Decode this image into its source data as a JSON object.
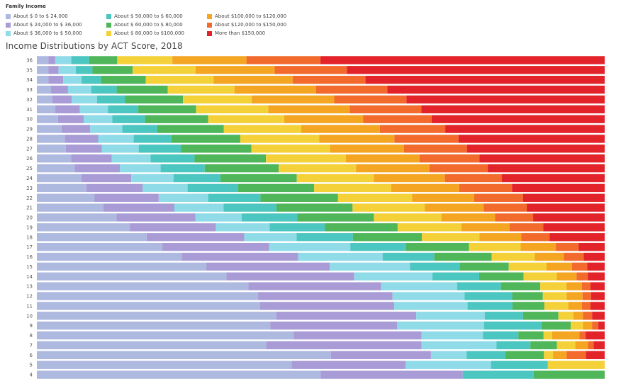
{
  "legend": {
    "title": "Family Income",
    "items": [
      {
        "label": "About $ 0 to $ 24,000",
        "color": "#aeb9e0"
      },
      {
        "label": "About $ 24,000 to $ 36,000",
        "color": "#a99cd6"
      },
      {
        "label": "About $ 36,000 to $ 50,000",
        "color": "#8fdbe8"
      },
      {
        "label": "About $ 50,000 to $ 60,000",
        "color": "#4cc6c0"
      },
      {
        "label": "About $ 60,000 to $ 80,000",
        "color": "#4fb65a"
      },
      {
        "label": "About $ 80,000 to $100,000",
        "color": "#f5d139"
      },
      {
        "label": "About $100,000 to $120,000",
        "color": "#f4a623"
      },
      {
        "label": "About $120,000 to $150,000",
        "color": "#f26a2c"
      },
      {
        "label": "More than $150,000",
        "color": "#e3232a"
      }
    ]
  },
  "chart_data": {
    "type": "bar",
    "orientation": "horizontal",
    "stacked": true,
    "normalized": true,
    "title": "Income Distributions by ACT Score, 2018",
    "xlabel": "",
    "ylabel": "",
    "categories": [
      "36",
      "35",
      "34",
      "33",
      "32",
      "31",
      "30",
      "29",
      "28",
      "27",
      "26",
      "25",
      "24",
      "23",
      "22",
      "21",
      "20",
      "19",
      "18",
      "17",
      "16",
      "15",
      "14",
      "13",
      "12",
      "11",
      "10",
      "9",
      "8",
      "7",
      "6",
      "5",
      "4"
    ],
    "series": [
      {
        "name": "About $ 0 to $ 24,000",
        "values": [
          2.0,
          2.0,
          2.0,
          2.5,
          2.7,
          3.2,
          3.7,
          4.3,
          4.9,
          5.1,
          6.0,
          6.6,
          7.7,
          8.6,
          10.0,
          11.6,
          13.8,
          16.2,
          19.1,
          22.1,
          25.5,
          30.0,
          33.7,
          37.1,
          39.0,
          39.2,
          41.9,
          40.6,
          45.8,
          39.8,
          51.8,
          44.8,
          50.0
        ]
      },
      {
        "name": "About $ 24,000 to $ 36,000",
        "values": [
          1.2,
          1.8,
          2.6,
          3.0,
          3.4,
          4.3,
          4.5,
          5.0,
          5.8,
          6.3,
          7.1,
          7.9,
          8.6,
          9.8,
          11.2,
          12.4,
          13.7,
          15.0,
          17.0,
          18.8,
          20.5,
          21.9,
          22.7,
          23.3,
          23.7,
          23.6,
          24.5,
          22.1,
          22.8,
          27.0,
          17.6,
          20.1,
          25.0
        ]
      },
      {
        "name": "About $ 36,000 to $ 50,000",
        "values": [
          2.8,
          3.0,
          3.2,
          4.1,
          4.4,
          4.9,
          5.0,
          5.6,
          6.2,
          6.5,
          6.8,
          7.1,
          7.3,
          7.8,
          8.6,
          8.6,
          8.0,
          9.4,
          9.1,
          14.3,
          14.9,
          14.2,
          13.9,
          13.3,
          12.7,
          12.9,
          12.0,
          15.1,
          11.0,
          13.0,
          6.3,
          15.0,
          0.0
        ]
      },
      {
        "name": "About $ 50,000 to $ 60,000",
        "values": [
          3.1,
          2.9,
          3.4,
          4.5,
          4.9,
          5.3,
          5.7,
          6.1,
          6.6,
          7.4,
          7.7,
          7.7,
          8.1,
          8.8,
          9.1,
          9.2,
          9.6,
          9.6,
          9.8,
          9.8,
          9.1,
          8.8,
          8.3,
          7.7,
          8.4,
          7.9,
          6.7,
          10.0,
          6.3,
          5.9,
          6.8,
          10.0,
          12.5
        ]
      },
      {
        "name": "About $ 60,000 to $ 80,000",
        "values": [
          4.9,
          7.0,
          7.8,
          9.0,
          10.1,
          10.1,
          11.1,
          11.6,
          12.0,
          12.4,
          12.5,
          12.9,
          13.2,
          13.2,
          13.5,
          13.3,
          13.3,
          12.7,
          12.0,
          11.1,
          10.1,
          8.7,
          7.9,
          6.9,
          5.4,
          5.6,
          6.2,
          5.1,
          4.5,
          4.6,
          6.8,
          0.0,
          12.5
        ]
      },
      {
        "name": "About $ 80,000 to $100,000",
        "values": [
          9.6,
          11.0,
          11.8,
          11.8,
          12.0,
          12.6,
          13.3,
          13.5,
          13.8,
          13.8,
          14.0,
          13.5,
          13.3,
          13.4,
          12.9,
          12.6,
          11.7,
          11.1,
          10.0,
          9.1,
          7.6,
          6.7,
          5.9,
          4.6,
          4.2,
          4.2,
          2.6,
          2.1,
          1.5,
          3.2,
          1.6,
          10.0,
          0.0
        ]
      },
      {
        "name": "About $100,000 to $120,000",
        "values": [
          12.9,
          13.8,
          13.8,
          14.4,
          14.4,
          14.2,
          13.8,
          13.7,
          13.1,
          13.0,
          12.9,
          12.8,
          12.3,
          11.8,
          10.8,
          10.3,
          9.3,
          8.4,
          7.3,
          6.2,
          5.1,
          4.5,
          3.5,
          2.7,
          2.8,
          2.4,
          1.7,
          1.6,
          4.9,
          2.2,
          2.4,
          0.0,
          0.0
        ]
      },
      {
        "name": "About $120,000 to $150,000",
        "values": [
          12.9,
          12.6,
          12.7,
          12.6,
          12.6,
          12.5,
          12.0,
          11.4,
          11.2,
          11.1,
          10.5,
          10.2,
          9.8,
          9.2,
          8.5,
          7.5,
          6.6,
          5.9,
          4.9,
          4.0,
          3.5,
          2.7,
          2.0,
          1.5,
          1.5,
          1.5,
          1.6,
          1.1,
          1.1,
          1.0,
          3.4,
          0.0,
          0.0
        ]
      },
      {
        "name": "More than $150,000",
        "values": [
          49.5,
          45.0,
          41.7,
          38.4,
          34.6,
          32.0,
          30.3,
          27.8,
          25.5,
          24.2,
          21.9,
          20.4,
          17.8,
          16.1,
          14.2,
          13.6,
          12.4,
          10.7,
          9.6,
          4.6,
          3.7,
          3.1,
          3.0,
          2.5,
          2.4,
          2.5,
          2.2,
          1.1,
          3.4,
          1.9,
          3.3,
          0.0,
          0.0
        ]
      }
    ]
  }
}
